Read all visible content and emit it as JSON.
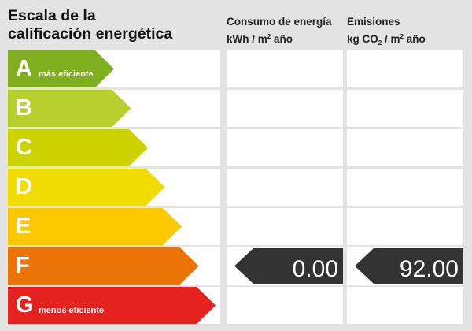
{
  "title": {
    "line1": "Escala de la",
    "line2": "calificación energética"
  },
  "columns": {
    "consumo": {
      "line1": "Consumo de energía",
      "unit_a": "kWh / m",
      "unit_sup": "2",
      "unit_b": " año"
    },
    "emisiones": {
      "line1": "Emisiones",
      "unit_a": "kg CO",
      "unit_sub": "2",
      "unit_b": " / m",
      "unit_sup": "2",
      "unit_c": " año"
    }
  },
  "ratings": [
    {
      "letter": "A",
      "label": "más eficiente",
      "color": "#7fae1f"
    },
    {
      "letter": "B",
      "label": "",
      "color": "#b7d02e"
    },
    {
      "letter": "C",
      "label": "",
      "color": "#ccd400"
    },
    {
      "letter": "D",
      "label": "",
      "color": "#f0dc00"
    },
    {
      "letter": "E",
      "label": "",
      "color": "#fcc800"
    },
    {
      "letter": "F",
      "label": "",
      "color": "#ec7308"
    },
    {
      "letter": "G",
      "label": "menos eficiente",
      "color": "#e42320"
    }
  ],
  "result": {
    "rating": "F",
    "consumo_value": "0.00",
    "emisiones_value": "92.00",
    "indicator_color": "#333333"
  }
}
